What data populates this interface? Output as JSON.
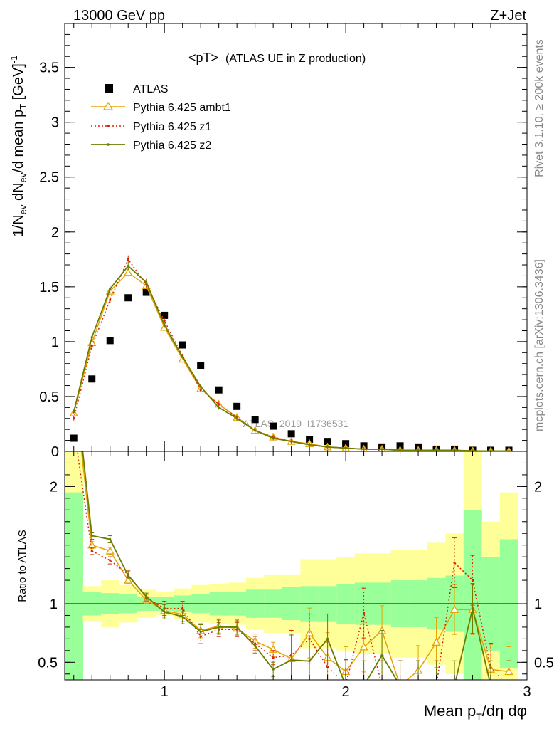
{
  "header": {
    "left": "13000 GeV pp",
    "right": "Z+Jet"
  },
  "side_labels": {
    "rivet": "Rivet 3.1.10, ≥ 200k events",
    "mcplots": "mcplots.cern.ch [arXiv:1306.3436]"
  },
  "watermark": "ATLAS_2019_I1736531",
  "chart_data": [
    {
      "type": "line",
      "title": "<pT> (ATLAS UE in Z production)",
      "title_main": "<pT>",
      "title_sub": "(ATLAS UE in Z production)",
      "ylabel": "1/N_ev dN_ev/d mean p_T [GeV]^-1",
      "xlim": [
        0.45,
        3.0
      ],
      "ylim": [
        0,
        3.9
      ],
      "yticks": [
        0,
        0.5,
        1,
        1.5,
        2,
        2.5,
        3,
        3.5
      ],
      "ytick_labels": [
        "0",
        "0.5",
        "1",
        "1.5",
        "2",
        "2.5",
        "3",
        "3.5"
      ],
      "grid": false,
      "legend_position": "top-left",
      "x": [
        0.5,
        0.6,
        0.7,
        0.8,
        0.9,
        1.0,
        1.1,
        1.2,
        1.3,
        1.4,
        1.5,
        1.6,
        1.7,
        1.8,
        1.9,
        2.0,
        2.1,
        2.2,
        2.3,
        2.4,
        2.5,
        2.6,
        2.7,
        2.8,
        2.9
      ],
      "series": [
        {
          "name": "ATLAS",
          "color": "#000000",
          "marker": "square",
          "values": [
            0.12,
            0.66,
            1.01,
            1.4,
            1.45,
            1.24,
            0.97,
            0.78,
            0.56,
            0.41,
            0.29,
            0.23,
            0.16,
            0.11,
            0.09,
            0.07,
            0.05,
            0.04,
            0.05,
            0.04,
            0.02,
            0.02,
            0.01,
            0.01,
            0.01
          ]
        },
        {
          "name": "Pythia 6.425 ambt1",
          "color": "#e8a200",
          "marker": "triangle",
          "values": [
            0.35,
            0.99,
            1.46,
            1.63,
            1.51,
            1.13,
            0.84,
            0.57,
            0.43,
            0.31,
            0.19,
            0.13,
            0.09,
            0.07,
            0.04,
            0.03,
            0.02,
            0.02,
            0.01,
            0.01,
            0.01,
            0.01,
            0.005,
            0.004,
            0.003
          ]
        },
        {
          "name": "Pythia 6.425 z1",
          "color": "#dd2200",
          "marker": "dot",
          "values": [
            0.3,
            0.96,
            1.38,
            1.75,
            1.52,
            1.19,
            0.87,
            0.56,
            0.43,
            0.31,
            0.19,
            0.13,
            0.09,
            0.06,
            0.04,
            0.03,
            0.02,
            0.02,
            0.01,
            0.01,
            0.01,
            0.01,
            0.005,
            0.004,
            0.003
          ]
        },
        {
          "name": "Pythia 6.425 z2",
          "color": "#6b7d00",
          "marker": "dot",
          "values": [
            0.36,
            1.04,
            1.48,
            1.69,
            1.54,
            1.15,
            0.86,
            0.59,
            0.4,
            0.3,
            0.19,
            0.12,
            0.09,
            0.06,
            0.04,
            0.03,
            0.02,
            0.02,
            0.01,
            0.01,
            0.01,
            0.01,
            0.005,
            0.004,
            0.003
          ]
        }
      ]
    },
    {
      "type": "line",
      "ylabel": "Ratio to ATLAS",
      "xlabel": "Mean p_T/dη dφ",
      "xlim": [
        0.45,
        3.0
      ],
      "ylim": [
        0.35,
        2.3
      ],
      "xticks": [
        1,
        2,
        3
      ],
      "xtick_labels": [
        "1",
        "2",
        "3"
      ],
      "yticks": [
        0.5,
        1,
        2
      ],
      "ytick_labels": [
        "0.5",
        "1",
        "2"
      ],
      "reference_line": 1,
      "x": [
        0.5,
        0.6,
        0.7,
        0.8,
        0.9,
        1.0,
        1.1,
        1.2,
        1.3,
        1.4,
        1.5,
        1.6,
        1.7,
        1.8,
        1.9,
        2.0,
        2.1,
        2.2,
        2.3,
        2.4,
        2.5,
        2.6,
        2.7,
        2.8,
        2.9
      ],
      "bands": {
        "stat_color": "#99ff99",
        "total_color": "#ffff99",
        "stat_up": [
          1.95,
          1.1,
          1.09,
          1.08,
          1.06,
          1.06,
          1.07,
          1.08,
          1.1,
          1.1,
          1.12,
          1.12,
          1.14,
          1.15,
          1.15,
          1.17,
          1.18,
          1.18,
          1.2,
          1.2,
          1.22,
          1.24,
          1.8,
          1.4,
          1.55
        ],
        "stat_dn": [
          0.3,
          0.9,
          0.91,
          0.92,
          0.94,
          0.94,
          0.93,
          0.92,
          0.9,
          0.9,
          0.88,
          0.88,
          0.86,
          0.85,
          0.85,
          0.83,
          0.82,
          0.82,
          0.8,
          0.8,
          0.78,
          0.76,
          0.3,
          0.6,
          0.45
        ],
        "total_up": [
          2.4,
          1.15,
          1.2,
          1.16,
          1.12,
          1.1,
          1.13,
          1.16,
          1.17,
          1.18,
          1.22,
          1.25,
          1.25,
          1.38,
          1.38,
          1.4,
          1.43,
          1.43,
          1.46,
          1.46,
          1.52,
          1.6,
          2.4,
          1.7,
          1.95
        ],
        "total_dn": [
          0.3,
          0.85,
          0.8,
          0.84,
          0.88,
          0.9,
          0.87,
          0.84,
          0.83,
          0.82,
          0.78,
          0.75,
          0.75,
          0.62,
          0.62,
          0.6,
          0.57,
          0.57,
          0.54,
          0.54,
          0.48,
          0.4,
          0.3,
          0.3,
          0.3
        ]
      },
      "series": [
        {
          "name": "Pythia 6.425 ambt1",
          "color": "#e8a200",
          "values": [
            2.9,
            1.5,
            1.45,
            1.2,
            1.03,
            0.94,
            0.91,
            0.77,
            0.81,
            0.79,
            0.68,
            0.61,
            0.53,
            0.75,
            0.54,
            0.42,
            0.63,
            0.77,
            0.3,
            0.43,
            0.67,
            0.95,
            0.95,
            0.44,
            0.42
          ]
        },
        {
          "name": "Pythia 6.425 z1",
          "color": "#dd2200",
          "values": [
            2.5,
            1.45,
            1.37,
            1.25,
            1.05,
            0.96,
            0.96,
            0.72,
            0.78,
            0.78,
            0.66,
            0.54,
            0.56,
            0.7,
            0.46,
            0.31,
            0.92,
            0.3,
            0.3,
            0.3,
            0.3,
            1.35,
            1.2,
            0.45,
            0.3
          ]
        },
        {
          "name": "Pythia 6.425 z2",
          "color": "#6b7d00",
          "values": [
            3.0,
            1.58,
            1.55,
            1.24,
            1.06,
            0.93,
            0.89,
            0.76,
            0.8,
            0.8,
            0.64,
            0.44,
            0.52,
            0.51,
            0.7,
            0.3,
            0.3,
            0.56,
            0.3,
            0.3,
            0.3,
            0.3,
            0.96,
            0.3,
            0.3
          ]
        }
      ]
    }
  ]
}
